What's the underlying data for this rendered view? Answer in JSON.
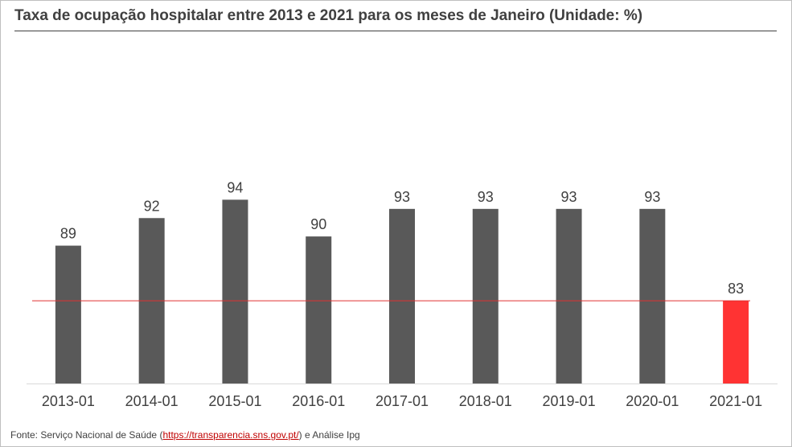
{
  "title": "Taxa de ocupação hospitalar entre 2013 e 2021 para os meses de Janeiro (Unidade: %)",
  "source": {
    "prefix": "Fonte: Serviço Nacional de Saúde (",
    "link": "https://transparencia.sns.gov.pt/",
    "suffix": ") e Análise Ipg"
  },
  "colors": {
    "bar": "#595959",
    "highlight": "#ff3333",
    "reference_line": "#e03030",
    "text": "#404040"
  },
  "chart_data": {
    "type": "bar",
    "title": "Taxa de ocupação hospitalar entre 2013 e 2021 para os meses de Janeiro (Unidade: %)",
    "xlabel": "",
    "ylabel": "",
    "categories": [
      "2013-01",
      "2014-01",
      "2015-01",
      "2016-01",
      "2017-01",
      "2018-01",
      "2019-01",
      "2020-01",
      "2021-01"
    ],
    "values": [
      89,
      92,
      94,
      90,
      93,
      93,
      93,
      93,
      83
    ],
    "highlight_index": 8,
    "reference_line_value": 83,
    "ylim": [
      74,
      95
    ],
    "grid": false,
    "legend": "none"
  }
}
